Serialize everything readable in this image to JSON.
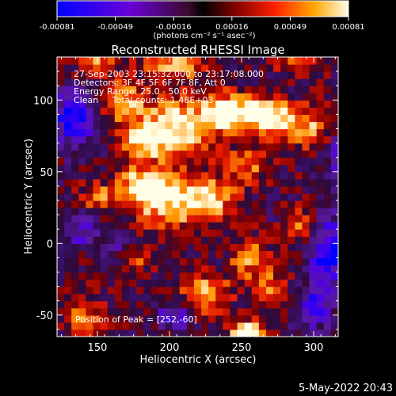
{
  "chart_data": {
    "type": "heatmap",
    "title": "Reconstructed RHESSI Image",
    "xlabel": "Heliocentric X (arcsec)",
    "ylabel": "Heliocentric Y (arcsec)",
    "x_ticks": [
      150,
      200,
      250,
      300
    ],
    "y_ticks": [
      -50,
      0,
      50,
      100
    ],
    "xlim": [
      122,
      317
    ],
    "ylim": [
      -65,
      130
    ],
    "colorbar": {
      "ticks": [
        "-0.00081",
        "-0.00049",
        "-0.00016",
        "0.00016",
        "0.00049",
        "0.00081"
      ],
      "unit": "(photons cm⁻² s⁻¹ asec⁻²)",
      "range": [
        -0.00081,
        0.00081
      ]
    },
    "info_lines": [
      "27-Sep-2003 23:15:32.000 to 23:17:08.000",
      "Detectors: 3F 4F 5F 6F 7F 8F, Att 0",
      "Energy Range: 25.0 - 50.0 keV",
      "Clean     Total counts: 1.48E+03"
    ],
    "peak_label": "Position of Peak = [252,-60]",
    "peak_position": [
      252,
      -60
    ]
  },
  "footer_date": "5-May-2022 20:43"
}
